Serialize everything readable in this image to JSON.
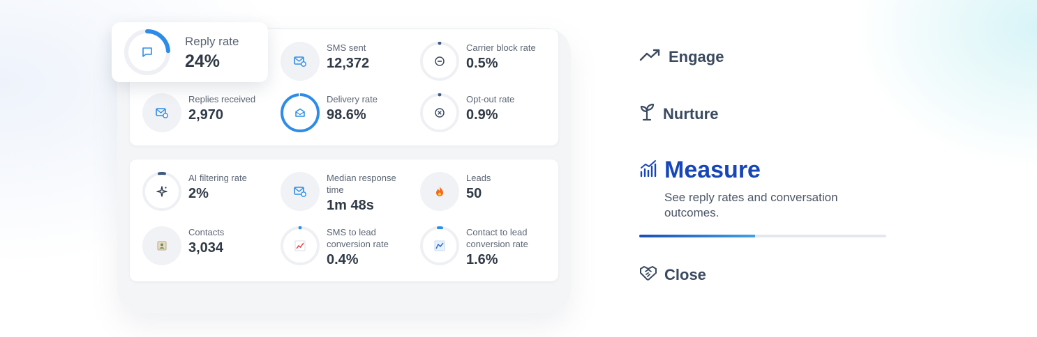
{
  "dashboard": {
    "reply_rate": {
      "label": "Reply rate",
      "value": "24%",
      "progress": 0.24,
      "icon": "chat-bubble-icon"
    },
    "top_metrics": [
      {
        "name": "sms-sent",
        "label": "SMS sent",
        "value": "12,372",
        "icon": "envelope-badge-icon"
      },
      {
        "name": "carrier-block-rate",
        "label": "Carrier block rate",
        "value": "0.5%",
        "progress": 0.005,
        "icon": "block-icon"
      },
      {
        "name": "replies-received",
        "label": "Replies received",
        "value": "2,970",
        "icon": "envelope-badge-icon"
      },
      {
        "name": "delivery-rate",
        "label": "Delivery rate",
        "value": "98.6%",
        "progress": 0.986,
        "icon": "envelope-open-icon"
      },
      {
        "name": "opt-out-rate",
        "label": "Opt-out rate",
        "value": "0.9%",
        "progress": 0.009,
        "icon": "x-circle-icon"
      }
    ],
    "bottom_metrics": [
      {
        "name": "ai-filtering-rate",
        "label": "AI filtering rate",
        "value": "2%",
        "progress": 0.02,
        "icon": "sparkle-icon"
      },
      {
        "name": "median-response-time",
        "label": "Median response time",
        "value": "1m 48s",
        "icon": "envelope-badge-icon"
      },
      {
        "name": "leads",
        "label": "Leads",
        "value": "50",
        "icon": "fire-icon"
      },
      {
        "name": "contacts",
        "label": "Contacts",
        "value": "3,034",
        "icon": "contact-card-icon"
      },
      {
        "name": "sms-to-lead-conversion-rate",
        "label": "SMS to lead conversion rate",
        "value": "0.4%",
        "progress": 0.004,
        "icon": "chart-up-red-icon"
      },
      {
        "name": "contact-to-lead-conversion-rate",
        "label": "Contact to lead conversion rate",
        "value": "1.6%",
        "progress": 0.016,
        "icon": "chart-up-blue-icon"
      }
    ]
  },
  "steps": {
    "engage": {
      "label": "Engage",
      "icon": "trend-up-icon"
    },
    "nurture": {
      "label": "Nurture",
      "icon": "sprout-icon"
    },
    "measure": {
      "label": "Measure",
      "icon": "bar-chart-icon",
      "description": "See reply rates and conversation outcomes.",
      "progress": 0.47
    },
    "close": {
      "label": "Close",
      "icon": "handshake-icon"
    }
  },
  "colors": {
    "accent_blue": "#2d8ce8",
    "dark_blue": "#1646b8",
    "ring_track": "#eef0f3",
    "ring_dot": "#3d5a80"
  }
}
